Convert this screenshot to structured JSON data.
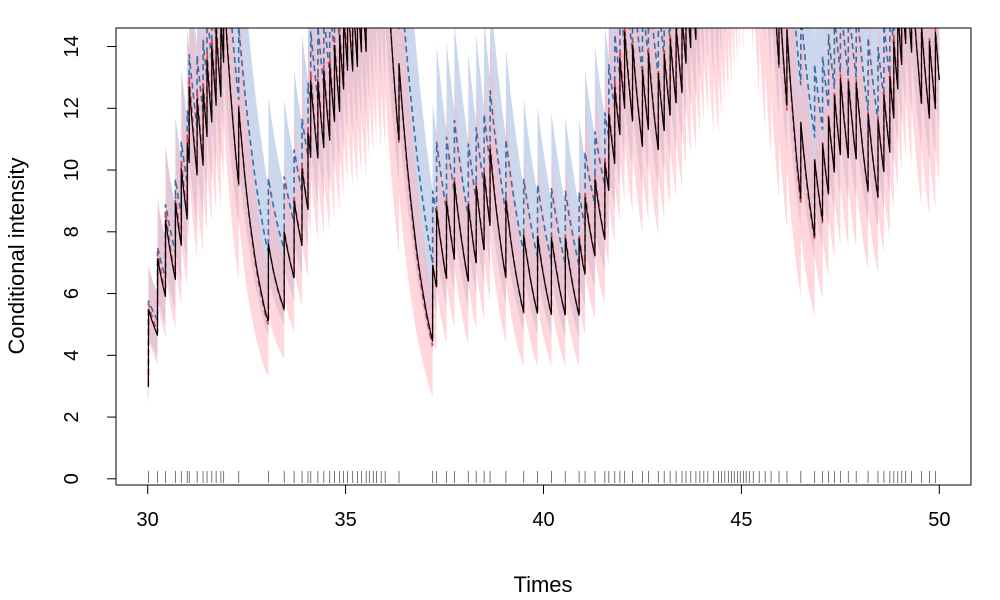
{
  "chart_data": {
    "type": "line",
    "title": "",
    "xlabel": "Times",
    "ylabel": "Conditional intensity",
    "xlim": [
      29.2,
      50.8
    ],
    "ylim": [
      -0.2,
      14.6
    ],
    "xticks": [
      30,
      35,
      40,
      45,
      50
    ],
    "yticks": [
      0,
      2,
      4,
      6,
      8,
      10,
      12,
      14
    ],
    "grid": false,
    "legend": "none",
    "colors": {
      "true_intensity": "#000000",
      "estimate_red": "#d9404a",
      "estimate_red_band": "#ffb6c1",
      "estimate_blue": "#3a6ea5",
      "estimate_blue_band": "#9fb6dc",
      "rug": "#555555"
    },
    "events": [
      30.02,
      30.25,
      30.45,
      30.7,
      30.85,
      31.0,
      31.05,
      31.25,
      31.4,
      31.5,
      31.62,
      31.73,
      31.85,
      31.92,
      32.3,
      33.05,
      33.45,
      33.7,
      33.9,
      34.05,
      34.12,
      34.3,
      34.45,
      34.6,
      34.72,
      34.85,
      34.95,
      35.05,
      35.18,
      35.3,
      35.4,
      35.52,
      35.6,
      35.7,
      35.78,
      35.9,
      36.0,
      36.35,
      37.2,
      37.3,
      37.55,
      37.75,
      38.1,
      38.3,
      38.5,
      38.65,
      39.05,
      39.5,
      39.85,
      40.2,
      40.55,
      40.9,
      41.05,
      41.3,
      41.55,
      41.65,
      41.8,
      41.93,
      42.05,
      42.25,
      42.5,
      42.65,
      42.9,
      43.05,
      43.2,
      43.35,
      43.5,
      43.6,
      43.72,
      43.85,
      43.95,
      44.05,
      44.15,
      44.3,
      44.42,
      44.5,
      44.58,
      44.67,
      44.75,
      44.82,
      44.9,
      44.97,
      45.05,
      45.12,
      45.2,
      45.3,
      45.45,
      45.6,
      45.75,
      45.95,
      46.15,
      46.5,
      46.85,
      47.05,
      47.2,
      47.35,
      47.5,
      47.7,
      47.9,
      48.2,
      48.45,
      48.6,
      48.75,
      48.85,
      48.95,
      49.05,
      49.15,
      49.3,
      49.55,
      49.75,
      49.9
    ],
    "base": [
      [
        30,
        3.0
      ],
      [
        33,
        2.4
      ],
      [
        34.1,
        3.6
      ],
      [
        36.6,
        2.6
      ],
      [
        37.2,
        1.9
      ],
      [
        38,
        2.3
      ],
      [
        41,
        2.2
      ],
      [
        42,
        4.0
      ],
      [
        44,
        5.0
      ],
      [
        46.5,
        2.7
      ],
      [
        48,
        3.8
      ],
      [
        50,
        4.3
      ]
    ],
    "jump_size": 2.5,
    "decay_rate": 1.7,
    "series": [
      {
        "name": "",
        "key": "true_intensity",
        "style": "solid"
      },
      {
        "name": "",
        "key": "estimate_red",
        "style": "dashed"
      },
      {
        "name": "",
        "key": "estimate_blue",
        "style": "dashed"
      }
    ]
  }
}
